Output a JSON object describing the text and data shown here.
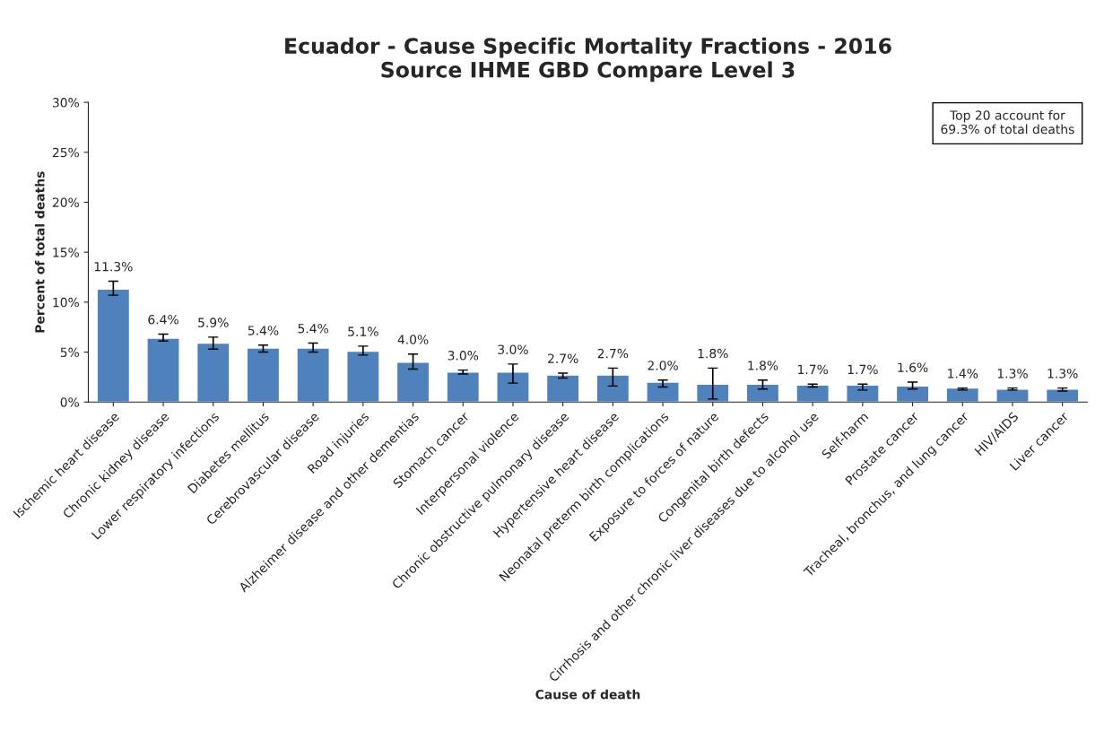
{
  "chart_data": {
    "type": "bar",
    "title": "Ecuador - Cause Specific Mortality Fractions - 2016\nSource IHME GBD Compare Level 3",
    "xlabel": "Cause of death",
    "ylabel": "Percent of total deaths",
    "categories": [
      "Ischemic heart disease",
      "Chronic kidney disease",
      "Lower respiratory infections",
      "Diabetes mellitus",
      "Cerebrovascular disease",
      "Road injuries",
      "Alzheimer disease and other dementias",
      "Stomach cancer",
      "Interpersonal violence",
      "Chronic obstructive pulmonary disease",
      "Hypertensive heart disease",
      "Neonatal preterm birth complications",
      "Exposure to forces of nature",
      "Congenital birth defects",
      "Cirrhosis and other chronic liver diseases due to alcohol use",
      "Self-harm",
      "Prostate cancer",
      "Tracheal, bronchus, and lung cancer",
      "HIV/AIDS",
      "Liver cancer"
    ],
    "values": [
      11.3,
      6.4,
      5.9,
      5.4,
      5.4,
      5.1,
      4.0,
      3.0,
      3.0,
      2.7,
      2.7,
      2.0,
      1.8,
      1.8,
      1.7,
      1.7,
      1.6,
      1.4,
      1.3,
      1.3
    ],
    "value_labels": [
      "11.3%",
      "6.4%",
      "5.9%",
      "5.4%",
      "5.4%",
      "5.1%",
      "4.0%",
      "3.0%",
      "3.0%",
      "2.7%",
      "2.7%",
      "2.0%",
      "1.8%",
      "1.8%",
      "1.7%",
      "1.7%",
      "1.6%",
      "1.4%",
      "1.3%",
      "1.3%"
    ],
    "errors": [
      [
        10.7,
        12.1
      ],
      [
        6.1,
        6.8
      ],
      [
        5.3,
        6.5
      ],
      [
        5.0,
        5.7
      ],
      [
        5.0,
        5.9
      ],
      [
        4.7,
        5.6
      ],
      [
        3.3,
        4.8
      ],
      [
        2.8,
        3.2
      ],
      [
        1.9,
        3.8
      ],
      [
        2.4,
        2.9
      ],
      [
        1.6,
        3.4
      ],
      [
        1.5,
        2.2
      ],
      [
        0.3,
        3.4
      ],
      [
        1.3,
        2.2
      ],
      [
        1.5,
        1.8
      ],
      [
        1.2,
        1.8
      ],
      [
        1.3,
        2.0
      ],
      [
        1.2,
        1.4
      ],
      [
        1.2,
        1.4
      ],
      [
        1.1,
        1.4
      ]
    ],
    "color": "#4f81bd",
    "ylim": [
      0,
      30
    ],
    "yticks": [
      {
        "value": 0,
        "label": "0%"
      },
      {
        "value": 5,
        "label": "5%"
      },
      {
        "value": 10,
        "label": "10%"
      },
      {
        "value": 15,
        "label": "15%"
      },
      {
        "value": 20,
        "label": "20%"
      },
      {
        "value": 25,
        "label": "25%"
      },
      {
        "value": 30,
        "label": "30%"
      }
    ],
    "annotations": [
      "Top 20 account for\n69.3% of total deaths"
    ],
    "grid": false,
    "legend": false
  }
}
